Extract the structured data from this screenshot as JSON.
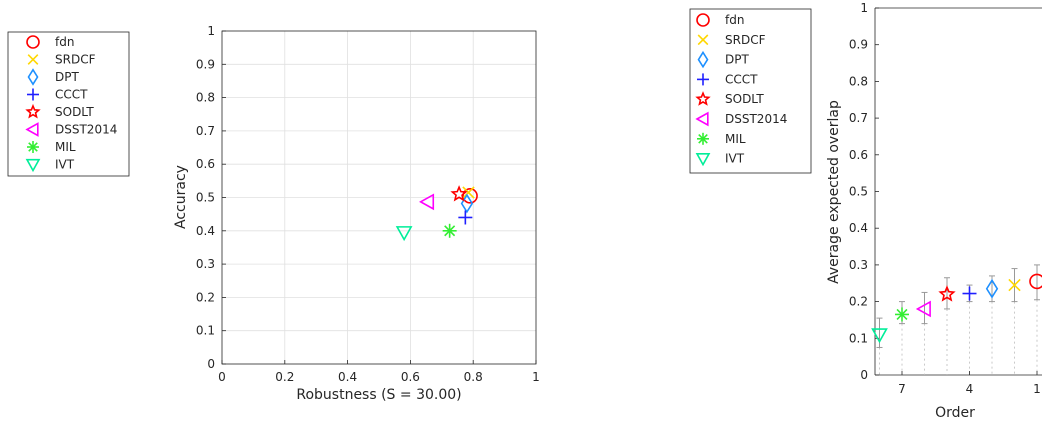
{
  "trackers": [
    {
      "name": "fdn",
      "marker": "circle",
      "color": "#ff0000"
    },
    {
      "name": "SRDCF",
      "marker": "x",
      "color": "#ffd700"
    },
    {
      "name": "DPT",
      "marker": "diamond",
      "color": "#1e90ff"
    },
    {
      "name": "CCCT",
      "marker": "plus",
      "color": "#1f1fff"
    },
    {
      "name": "SODLT",
      "marker": "star",
      "color": "#ff0000"
    },
    {
      "name": "DSST2014",
      "marker": "triangle-left",
      "color": "#ff00ff"
    },
    {
      "name": "MIL",
      "marker": "asterisk",
      "color": "#33ee33"
    },
    {
      "name": "IVT",
      "marker": "triangle-down",
      "color": "#00ee99"
    }
  ],
  "chart_data": [
    {
      "type": "scatter",
      "title": "",
      "xlabel": "Robustness (S = 30.00)",
      "ylabel": "Accuracy",
      "xlim": [
        0,
        1
      ],
      "ylim": [
        0,
        1
      ],
      "xticks": [
        "0",
        "0.2",
        "0.4",
        "0.6",
        "0.8",
        "1"
      ],
      "yticks": [
        "0",
        "0.1",
        "0.2",
        "0.3",
        "0.4",
        "0.5",
        "0.6",
        "0.7",
        "0.8",
        "0.9",
        "1"
      ],
      "grid": true,
      "legend": "outside-left",
      "points": [
        {
          "series": "fdn",
          "x": 0.79,
          "y": 0.505
        },
        {
          "series": "SRDCF",
          "x": 0.785,
          "y": 0.515
        },
        {
          "series": "DPT",
          "x": 0.78,
          "y": 0.482
        },
        {
          "series": "CCCT",
          "x": 0.775,
          "y": 0.44
        },
        {
          "series": "SODLT",
          "x": 0.755,
          "y": 0.51
        },
        {
          "series": "DSST2014",
          "x": 0.655,
          "y": 0.487
        },
        {
          "series": "MIL",
          "x": 0.725,
          "y": 0.4
        },
        {
          "series": "IVT",
          "x": 0.58,
          "y": 0.395
        }
      ]
    },
    {
      "type": "scatter",
      "title": "",
      "xlabel": "Order",
      "ylabel": "Average expected overlap",
      "ylim": [
        0,
        1
      ],
      "xticks": [
        "7",
        "4",
        "1"
      ],
      "yticks": [
        "0",
        "0.1",
        "0.2",
        "0.3",
        "0.4",
        "0.5",
        "0.6",
        "0.7",
        "0.8",
        "0.9",
        "1"
      ],
      "grid": false,
      "legend": "outside-left",
      "points": [
        {
          "series": "fdn",
          "order": 1,
          "y": 0.255,
          "err": [
            0.205,
            0.3
          ]
        },
        {
          "series": "SRDCF",
          "order": 2,
          "y": 0.245,
          "err": [
            0.2,
            0.29
          ]
        },
        {
          "series": "DPT",
          "order": 3,
          "y": 0.235,
          "err": [
            0.2,
            0.27
          ]
        },
        {
          "series": "CCCT",
          "order": 4,
          "y": 0.222,
          "err": [
            0.2,
            0.245
          ]
        },
        {
          "series": "SODLT",
          "order": 5,
          "y": 0.22,
          "err": [
            0.18,
            0.265
          ]
        },
        {
          "series": "DSST2014",
          "order": 6,
          "y": 0.18,
          "err": [
            0.14,
            0.225
          ]
        },
        {
          "series": "MIL",
          "order": 7,
          "y": 0.165,
          "err": [
            0.14,
            0.2
          ]
        },
        {
          "series": "IVT",
          "order": 8,
          "y": 0.11,
          "err": [
            0.075,
            0.155
          ]
        }
      ]
    }
  ]
}
